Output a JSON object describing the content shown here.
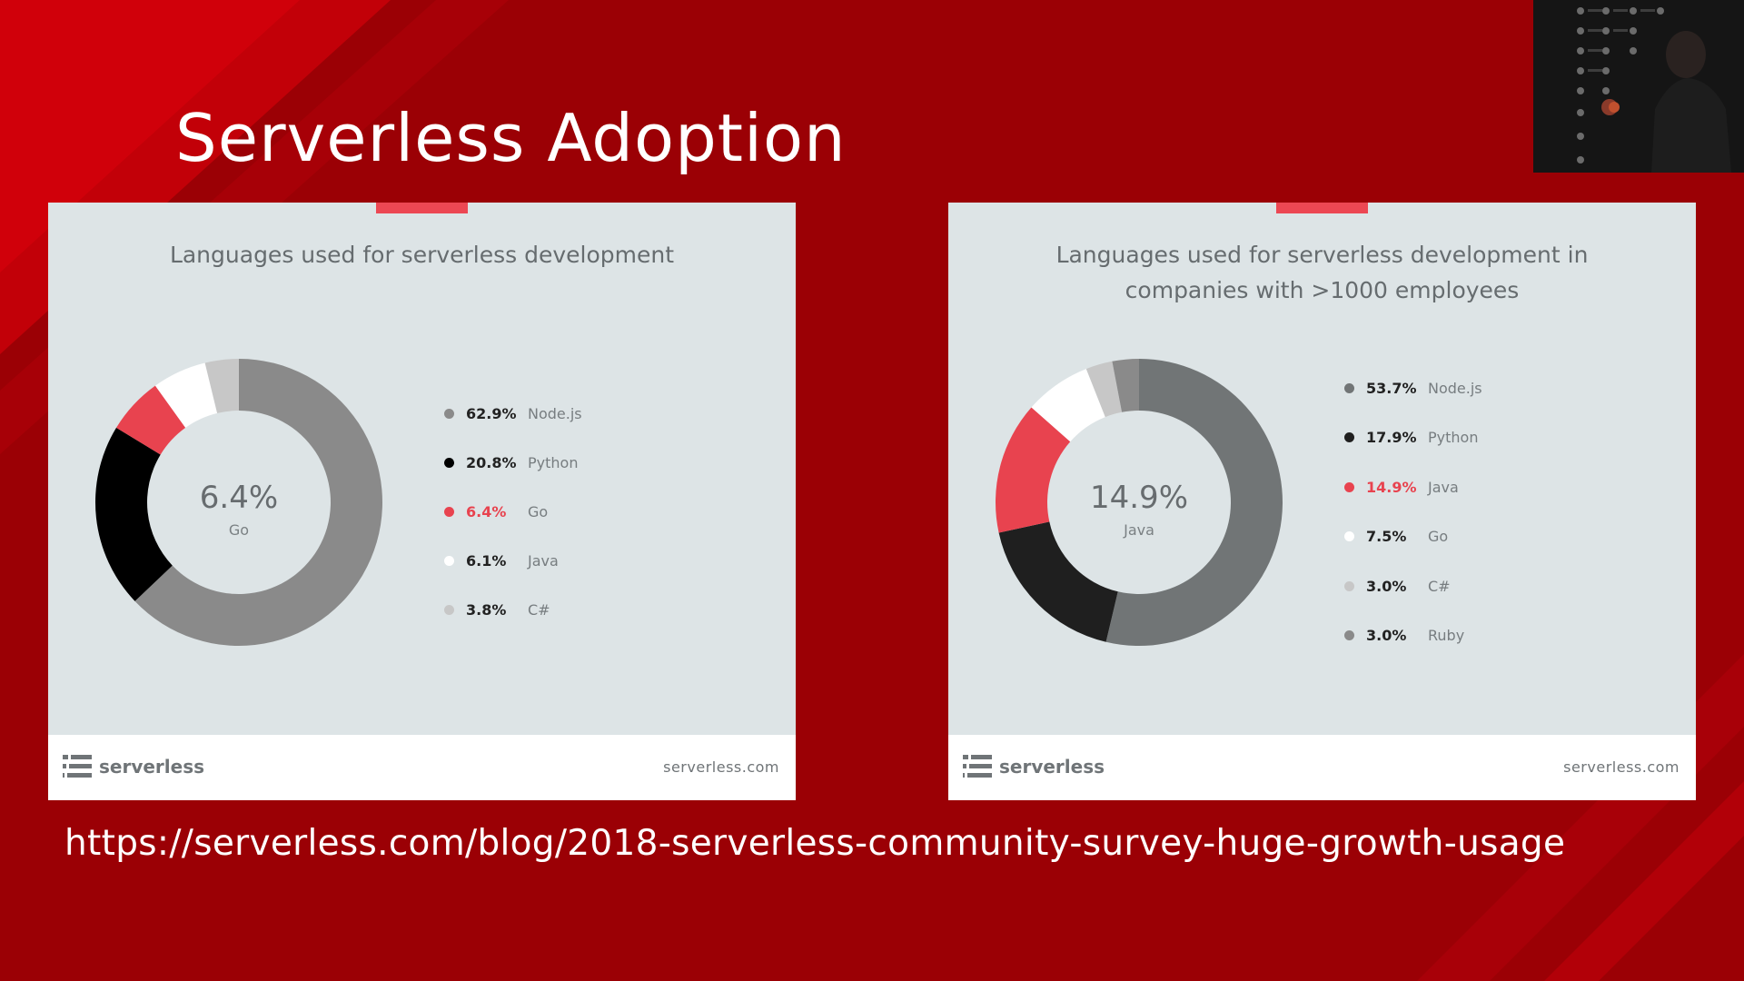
{
  "slide": {
    "title": "Serverless Adoption",
    "source_url": "https://serverless.com/blog/2018-serverless-community-survey-huge-growth-usage",
    "background_color": "#9b0005"
  },
  "cards": [
    {
      "brand": "serverless",
      "site": "serverless.com",
      "center_value": "6.4%",
      "center_label": "Go"
    },
    {
      "brand": "serverless",
      "site": "serverless.com",
      "center_value": "14.9%",
      "center_label": "Java"
    }
  ],
  "chart_data": [
    {
      "type": "pie",
      "variant": "donut",
      "title": "Languages used for serverless development",
      "categories": [
        "Node.js",
        "Python",
        "Go",
        "Java",
        "C#"
      ],
      "values": [
        62.9,
        20.8,
        6.4,
        6.1,
        3.8
      ],
      "labels": [
        "62.9%",
        "20.8%",
        "6.4%",
        "6.1%",
        "3.8%"
      ],
      "colors": [
        "#8a8a8a",
        "#000000",
        "#e8434f",
        "#ffffff",
        "#c7c7c7"
      ],
      "highlight": "Go",
      "legend": "right"
    },
    {
      "type": "pie",
      "variant": "donut",
      "title": "Languages used for serverless development in companies with >1000 employees",
      "categories": [
        "Node.js",
        "Python",
        "Java",
        "Go",
        "C#",
        "Ruby"
      ],
      "values": [
        53.7,
        17.9,
        14.9,
        7.5,
        3.0,
        3.0
      ],
      "labels": [
        "53.7%",
        "17.9%",
        "14.9%",
        "7.5%",
        "3.0%",
        "3.0%"
      ],
      "colors": [
        "#717576",
        "#1f1f1f",
        "#e8434f",
        "#ffffff",
        "#c7c7c7",
        "#8a8a8a"
      ],
      "highlight": "Java",
      "legend": "right"
    }
  ]
}
